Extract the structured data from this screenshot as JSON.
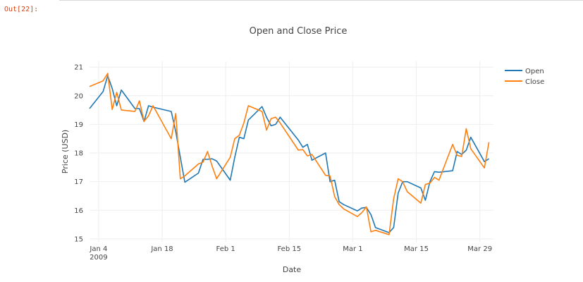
{
  "cell": {
    "output_prompt": "Out[22]:"
  },
  "chart_data": {
    "type": "line",
    "title": "Open and Close Price",
    "xlabel": "Date",
    "ylabel": "Price (USD)",
    "legend_position": "top-right",
    "grid": true,
    "colors": {
      "Open": "#1f77b4",
      "Close": "#ff7f0e"
    },
    "xlim": [
      "2009-01-02",
      "2009-04-01"
    ],
    "ylim": [
      14.9,
      21.2
    ],
    "x_ticks": [
      {
        "date": "2009-01-04",
        "label": "Jan 4",
        "sublabel": "2009"
      },
      {
        "date": "2009-01-18",
        "label": "Jan 18"
      },
      {
        "date": "2009-02-01",
        "label": "Feb 1"
      },
      {
        "date": "2009-02-15",
        "label": "Feb 15"
      },
      {
        "date": "2009-03-01",
        "label": "Mar 1"
      },
      {
        "date": "2009-03-15",
        "label": "Mar 15"
      },
      {
        "date": "2009-03-29",
        "label": "Mar 29"
      }
    ],
    "y_ticks": [
      15,
      16,
      17,
      18,
      19,
      20,
      21
    ],
    "x": [
      "2009-01-02",
      "2009-01-05",
      "2009-01-06",
      "2009-01-07",
      "2009-01-08",
      "2009-01-09",
      "2009-01-12",
      "2009-01-13",
      "2009-01-14",
      "2009-01-15",
      "2009-01-16",
      "2009-01-20",
      "2009-01-21",
      "2009-01-22",
      "2009-01-23",
      "2009-01-26",
      "2009-01-27",
      "2009-01-28",
      "2009-01-29",
      "2009-01-30",
      "2009-02-02",
      "2009-02-03",
      "2009-02-04",
      "2009-02-05",
      "2009-02-06",
      "2009-02-09",
      "2009-02-10",
      "2009-02-11",
      "2009-02-12",
      "2009-02-13",
      "2009-02-17",
      "2009-02-18",
      "2009-02-19",
      "2009-02-20",
      "2009-02-23",
      "2009-02-24",
      "2009-02-25",
      "2009-02-26",
      "2009-02-27",
      "2009-03-02",
      "2009-03-03",
      "2009-03-04",
      "2009-03-05",
      "2009-03-06",
      "2009-03-09",
      "2009-03-10",
      "2009-03-11",
      "2009-03-12",
      "2009-03-13",
      "2009-03-16",
      "2009-03-17",
      "2009-03-18",
      "2009-03-19",
      "2009-03-20",
      "2009-03-23",
      "2009-03-24",
      "2009-03-25",
      "2009-03-26",
      "2009-03-27",
      "2009-03-30",
      "2009-03-31"
    ],
    "series": [
      {
        "name": "Open",
        "values": [
          19.55,
          20.15,
          20.7,
          20.25,
          19.65,
          20.2,
          19.55,
          19.55,
          19.1,
          19.65,
          19.6,
          19.45,
          18.75,
          17.85,
          16.98,
          17.3,
          17.78,
          17.78,
          17.8,
          17.72,
          17.05,
          17.85,
          18.55,
          18.5,
          19.15,
          19.62,
          19.25,
          18.95,
          19.0,
          19.25,
          18.45,
          18.2,
          18.3,
          17.75,
          18.0,
          17.0,
          17.05,
          16.3,
          16.2,
          15.98,
          16.08,
          16.1,
          15.85,
          15.4,
          15.22,
          15.4,
          16.6,
          17.0,
          17.0,
          16.78,
          16.35,
          17.0,
          17.35,
          17.33,
          17.38,
          18.05,
          17.95,
          18.1,
          18.55,
          17.7,
          17.8
        ]
      },
      {
        "name": "Close",
        "values": [
          20.32,
          20.52,
          20.78,
          19.52,
          20.12,
          19.5,
          19.45,
          19.82,
          19.1,
          19.3,
          19.65,
          18.5,
          19.38,
          17.1,
          17.2,
          17.62,
          17.68,
          18.05,
          17.55,
          17.1,
          17.85,
          18.5,
          18.62,
          19.05,
          19.65,
          19.45,
          18.8,
          19.2,
          19.25,
          19.05,
          18.1,
          18.12,
          17.9,
          17.95,
          17.22,
          17.2,
          16.48,
          16.2,
          16.05,
          15.78,
          15.92,
          16.12,
          15.25,
          15.3,
          15.15,
          16.4,
          17.1,
          17.0,
          16.65,
          16.25,
          16.9,
          16.95,
          17.15,
          17.05,
          18.3,
          17.92,
          17.88,
          18.85,
          18.15,
          17.48,
          18.38
        ]
      }
    ]
  }
}
